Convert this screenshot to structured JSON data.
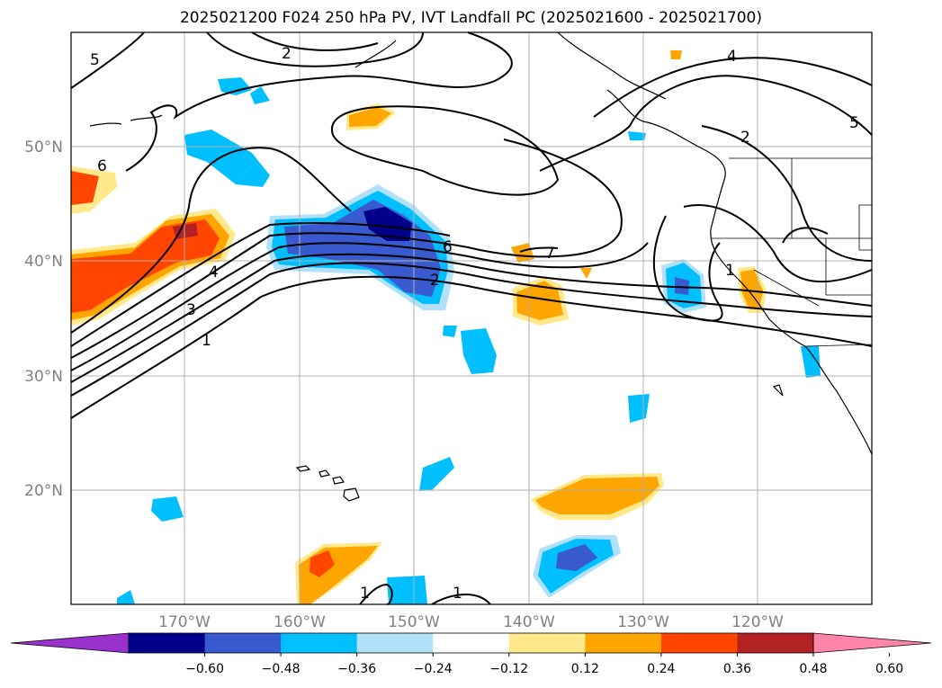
{
  "title": "2025021200 F024 250 hPa PV, IVT Landfall PC (2025021600 - 2025021700)",
  "map": {
    "lat_labels": [
      "50°N",
      "40°N",
      "30°N",
      "20°N"
    ],
    "lon_labels": [
      "170°W",
      "160°W",
      "150°W",
      "140°W",
      "130°W",
      "120°W"
    ],
    "contour_labels": [
      "5",
      "2",
      "6",
      "4",
      "3",
      "1",
      "6",
      "2",
      "7",
      "4",
      "5",
      "2",
      "1",
      "1",
      "1"
    ]
  },
  "colorbar": {
    "ticks": [
      "−0.60",
      "−0.48",
      "−0.36",
      "−0.24",
      "−0.12",
      "0.12",
      "0.24",
      "0.36",
      "0.48",
      "0.60"
    ],
    "colors": [
      "#9932cc",
      "#00008b",
      "#3a5bcf",
      "#00bfff",
      "#b0e0fa",
      "#ffffff",
      "#ffe98a",
      "#ffa500",
      "#ff4500",
      "#b22222",
      "#ff85a8"
    ]
  }
}
